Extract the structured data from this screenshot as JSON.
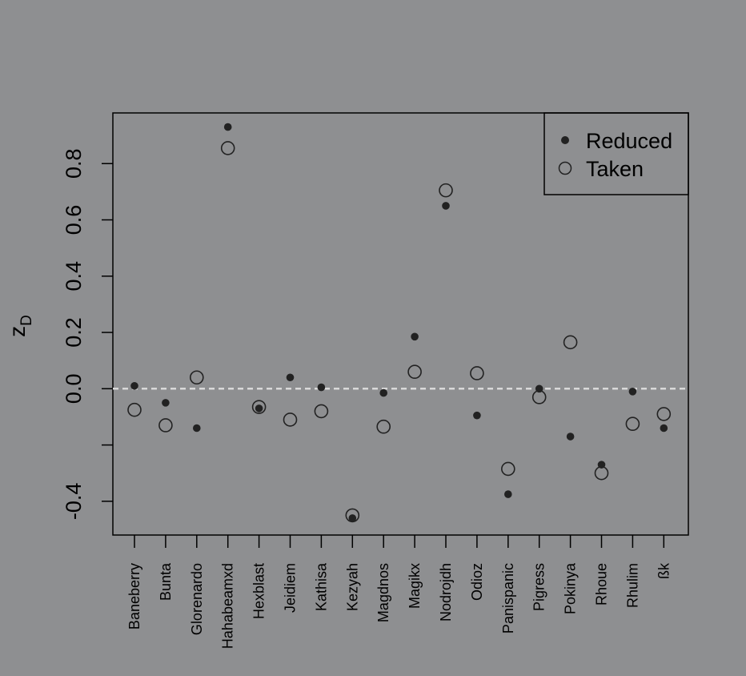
{
  "chart_data": {
    "type": "scatter",
    "ylabel_main": "z",
    "ylabel_sub": "D",
    "xlabel": "",
    "title": "",
    "ylim": [
      -0.52,
      0.98
    ],
    "yticks": [
      {
        "value": 0.8,
        "label": "0.8"
      },
      {
        "value": 0.6,
        "label": "0.6"
      },
      {
        "value": 0.4,
        "label": "0.4"
      },
      {
        "value": 0.2,
        "label": "0.2"
      },
      {
        "value": 0.0,
        "label": "0.0"
      },
      {
        "value": -0.4,
        "label": "-0.4"
      }
    ],
    "extra_ytick_values": [
      -0.2
    ],
    "reference_line": {
      "y": 0.0,
      "style": "dashed",
      "color": "#d9d9d9"
    },
    "categories": [
      "Baneberry",
      "Bunta",
      "Glorenardo",
      "Hahabeamxd",
      "Hexblast",
      "Jeidiem",
      "Kathisa",
      "Kezyah",
      "Magdnos",
      "Magikx",
      "Nodrojdh",
      "Odioz",
      "Panispanic",
      "Pigress",
      "Pokinya",
      "Rhoue",
      "Rhulim",
      "ßk"
    ],
    "series": [
      {
        "name": "Reduced",
        "marker": "filled-circle",
        "values": [
          0.01,
          -0.05,
          -0.14,
          0.93,
          -0.07,
          0.04,
          0.005,
          -0.46,
          -0.015,
          0.185,
          0.65,
          -0.095,
          -0.375,
          0.0,
          -0.17,
          -0.27,
          -0.01,
          -0.14
        ]
      },
      {
        "name": "Taken",
        "marker": "open-circle",
        "values": [
          -0.075,
          -0.13,
          0.04,
          0.855,
          -0.065,
          -0.11,
          -0.08,
          -0.45,
          -0.135,
          0.06,
          0.705,
          0.055,
          -0.285,
          -0.03,
          0.165,
          -0.3,
          -0.125,
          -0.09
        ]
      }
    ],
    "legend": {
      "position": "top-right"
    },
    "grid": false,
    "colors": {
      "background": "#8e8f91",
      "point": "#222222",
      "axis": "#000000"
    }
  }
}
